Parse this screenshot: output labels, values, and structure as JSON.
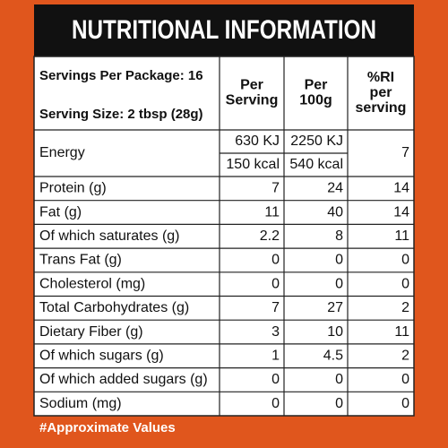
{
  "title": "NUTRITIONAL INFORMATION",
  "header": {
    "servings": "Servings Per Package: 16",
    "serving_size": "Serving Size: 2 tbsp (28g)",
    "columns": [
      [
        "Per",
        "Serving"
      ],
      [
        "Per",
        "100g"
      ],
      [
        "%RI",
        "per",
        "serving"
      ]
    ]
  },
  "energy": {
    "label": "Energy",
    "per_serving": [
      "630 KJ",
      "150 kcal"
    ],
    "per_100g": [
      "2250 KJ",
      "540 kcal"
    ],
    "ri": 7
  },
  "rows": [
    [
      "Protein (g)",
      7,
      24,
      14
    ],
    [
      "Fat (g)",
      11,
      40,
      14
    ],
    [
      "Of which saturates (g)",
      2.2,
      8,
      11
    ],
    [
      "Trans Fat (g)",
      0,
      0,
      0
    ],
    [
      "Cholesterol (mg)",
      0,
      0,
      0
    ],
    [
      "Total Carbohydrates (g)",
      7,
      27,
      2
    ],
    [
      "Dietary Fiber (g)",
      3,
      10,
      11
    ],
    [
      "Of which sugars (g)",
      1,
      4.5,
      2
    ],
    [
      "Of which added sugars (g)",
      0,
      0,
      0
    ],
    [
      "Sodium (mg)",
      0,
      0,
      0
    ]
  ],
  "footnote": "#Approximate Values"
}
